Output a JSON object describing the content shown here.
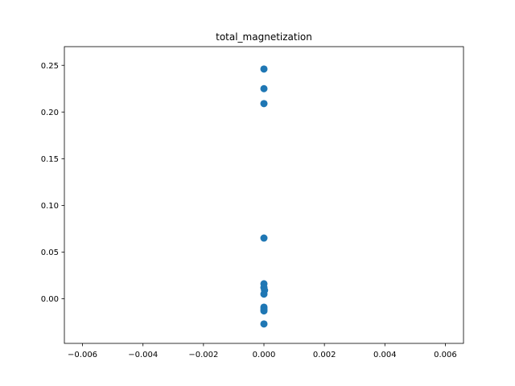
{
  "chart_data": {
    "type": "scatter",
    "title": "total_magnetization",
    "xlabel": "",
    "ylabel": "",
    "xlim": [
      -0.0066,
      0.0066
    ],
    "ylim": [
      -0.0478,
      0.27
    ],
    "grid": false,
    "color": "#1f77b4",
    "xticks": [
      {
        "value": -0.006,
        "label": "−0.006"
      },
      {
        "value": -0.004,
        "label": "−0.004"
      },
      {
        "value": -0.002,
        "label": "−0.002"
      },
      {
        "value": 0.0,
        "label": "0.000"
      },
      {
        "value": 0.002,
        "label": "0.002"
      },
      {
        "value": 0.004,
        "label": "0.004"
      },
      {
        "value": 0.006,
        "label": "0.006"
      }
    ],
    "yticks": [
      {
        "value": 0.0,
        "label": "0.00"
      },
      {
        "value": 0.05,
        "label": "0.05"
      },
      {
        "value": 0.1,
        "label": "0.10"
      },
      {
        "value": 0.15,
        "label": "0.15"
      },
      {
        "value": 0.2,
        "label": "0.20"
      },
      {
        "value": 0.25,
        "label": "0.25"
      }
    ],
    "points": [
      {
        "x": 0.0,
        "y": 0.246
      },
      {
        "x": 0.0,
        "y": 0.225
      },
      {
        "x": 0.0,
        "y": 0.209
      },
      {
        "x": 0.0,
        "y": 0.065
      },
      {
        "x": 0.0,
        "y": 0.016
      },
      {
        "x": 0.0,
        "y": 0.012
      },
      {
        "x": 2e-05,
        "y": 0.009
      },
      {
        "x": 0.0,
        "y": 0.005
      },
      {
        "x": 0.0,
        "y": -0.009
      },
      {
        "x": 0.0,
        "y": -0.011
      },
      {
        "x": 0.0,
        "y": -0.013
      },
      {
        "x": 0.0,
        "y": -0.027
      }
    ]
  }
}
